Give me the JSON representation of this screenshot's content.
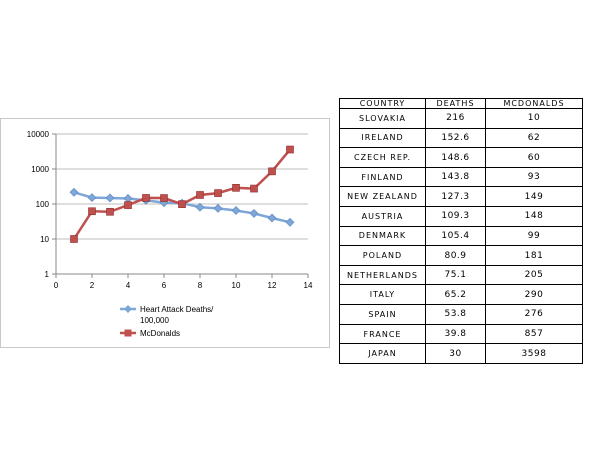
{
  "chart_data": {
    "type": "line",
    "yscale": "log",
    "ylim": [
      1,
      10000
    ],
    "xlim": [
      0,
      14
    ],
    "x_ticks": [
      "0",
      "2",
      "4",
      "6",
      "8",
      "10",
      "12",
      "14"
    ],
    "y_ticks": [
      "1",
      "10",
      "100",
      "1000",
      "10000"
    ],
    "grid": "horizontal",
    "legend_position": "bottom",
    "x": [
      1,
      2,
      3,
      4,
      5,
      6,
      7,
      8,
      9,
      10,
      11,
      12,
      13
    ],
    "series": [
      {
        "name_lines": [
          "Heart Attack Deaths/",
          "100,000"
        ],
        "values": [
          216,
          152.6,
          148.6,
          143.8,
          127.3,
          109.3,
          105.4,
          80.9,
          75.1,
          65.2,
          53.8,
          39.8,
          30
        ],
        "color": "#7ea6d8",
        "marker": "diamond"
      },
      {
        "name_lines": [
          "McDonalds"
        ],
        "values": [
          10,
          62,
          60,
          93,
          149,
          148,
          99,
          181,
          205,
          290,
          276,
          857,
          3598
        ],
        "color": "#c0504d",
        "marker": "square"
      }
    ]
  },
  "table": {
    "headers": [
      "COUNTRY",
      "DEATHS",
      "MCDONALDS"
    ],
    "rows": [
      [
        "SLOVAKIA",
        "216",
        "10"
      ],
      [
        "IRELAND",
        "152.6",
        "62"
      ],
      [
        "CZECH REP.",
        "148.6",
        "60"
      ],
      [
        "FINLAND",
        "143.8",
        "93"
      ],
      [
        "NEW ZEALAND",
        "127.3",
        "149"
      ],
      [
        "AUSTRIA",
        "109.3",
        "148"
      ],
      [
        "DENMARK",
        "105.4",
        "99"
      ],
      [
        "POLAND",
        "80.9",
        "181"
      ],
      [
        "NETHERLANDS",
        "75.1",
        "205"
      ],
      [
        "ITALY",
        "65.2",
        "290"
      ],
      [
        "SPAIN",
        "53.8",
        "276"
      ],
      [
        "FRANCE",
        "39.8",
        "857"
      ],
      [
        "JAPAN",
        "30",
        "3598"
      ]
    ]
  }
}
